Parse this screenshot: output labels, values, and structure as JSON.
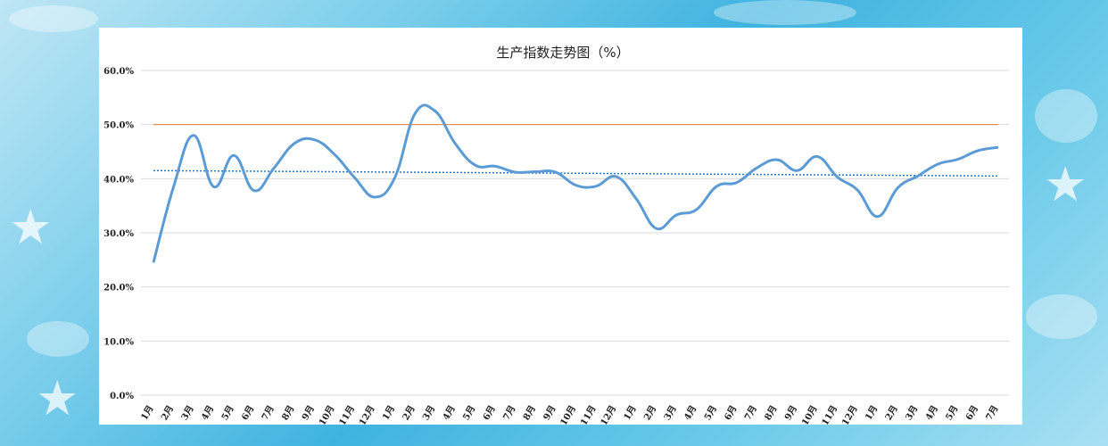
{
  "colors": {
    "line": "#5b9bd5",
    "trend": "#2e75b6",
    "reference": "#ed7d31",
    "grid": "#d9d9d9"
  },
  "chart_data": {
    "type": "line",
    "title": "生产指数走势图（%）",
    "ylim": [
      0,
      60
    ],
    "yticks": [
      "0.0%",
      "10.0%",
      "20.0%",
      "30.0%",
      "40.0%",
      "50.0%",
      "60.0%"
    ],
    "yticks_values": [
      0,
      10,
      20,
      30,
      40,
      50,
      60
    ],
    "categories": [
      "1月",
      "2月",
      "3月",
      "4月",
      "5月",
      "6月",
      "7月",
      "8月",
      "9月",
      "10月",
      "11月",
      "12月",
      "1月",
      "2月",
      "3月",
      "4月",
      "5月",
      "6月",
      "7月",
      "8月",
      "9月",
      "10月",
      "11月",
      "12月",
      "1月",
      "2月",
      "3月",
      "4月",
      "5月",
      "6月",
      "7月",
      "8月",
      "9月",
      "10月",
      "11月",
      "12月",
      "1月",
      "2月",
      "3月",
      "4月",
      "5月",
      "6月",
      "7月"
    ],
    "series": [
      {
        "values": [
          24.5,
          38.5,
          48.0,
          38.5,
          44.3,
          37.8,
          42.0,
          46.5,
          47.2,
          44.5,
          40.2,
          36.6,
          40.2,
          52.0,
          52.5,
          46.5,
          42.5,
          42.3,
          41.2,
          41.3,
          41.2,
          38.8,
          38.6,
          40.4,
          36.3,
          30.8,
          33.3,
          34.3,
          38.6,
          39.3,
          42.0,
          43.5,
          41.5,
          44.1,
          40.3,
          37.9,
          33.0,
          38.3,
          40.5,
          42.7,
          43.6,
          45.2,
          45.8
        ]
      }
    ],
    "reference_line": 50,
    "trend_line": [
      41.5,
      40.5
    ],
    "grid": true,
    "legend": "none"
  }
}
